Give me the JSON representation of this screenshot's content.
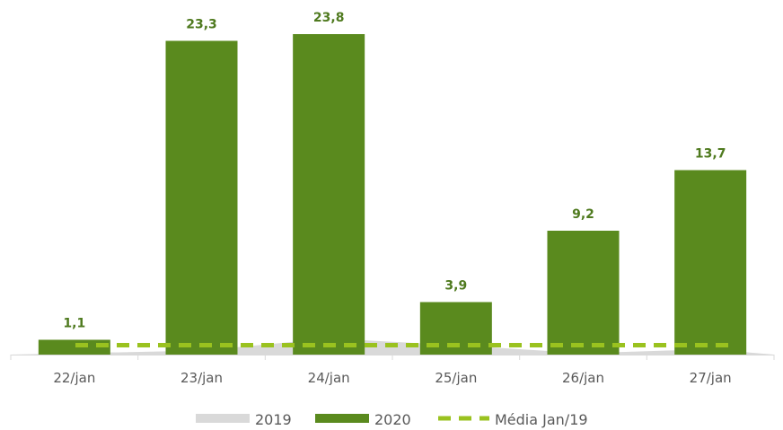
{
  "chart_data": {
    "type": "bar",
    "categories": [
      "22/jan",
      "23/jan",
      "24/jan",
      "25/jan",
      "26/jan",
      "27/jan"
    ],
    "series": [
      {
        "name": "2019",
        "type": "area",
        "values": [
          0.1,
          0.3,
          1.2,
          0.7,
          0.1,
          0.4
        ],
        "color": "#d9d9d9"
      },
      {
        "name": "2020",
        "type": "bar",
        "values": [
          1.1,
          23.3,
          23.8,
          3.9,
          9.2,
          13.7
        ],
        "color": "#5a8a1e"
      },
      {
        "name": "Média Jan/19",
        "type": "line",
        "style": "dashed",
        "values": [
          0.5,
          0.5,
          0.5,
          0.5,
          0.5,
          0.5
        ],
        "color": "#9ac21f"
      }
    ],
    "data_labels": [
      "1,1",
      "23,3",
      "23,8",
      "3,9",
      "9,2",
      "13,7"
    ],
    "ylim": [
      0,
      25
    ],
    "grid": false,
    "legend": "bottom",
    "title": "",
    "xlabel": "",
    "ylabel": ""
  }
}
